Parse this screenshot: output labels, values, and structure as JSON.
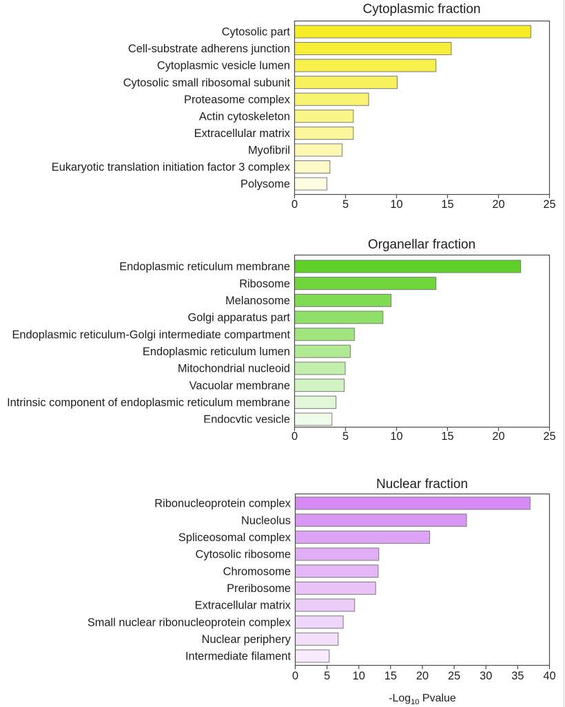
{
  "chart_data": [
    {
      "type": "bar",
      "orientation": "horizontal",
      "title": "Cytoplasmic fraction",
      "categories": [
        "Cytosolic part",
        "Cell-substrate adherens junction",
        "Cytoplasmic vesicle lumen",
        "Cytosolic small ribosomal subunit",
        "Proteasome complex",
        "Actin cytoskeleton",
        "Extracellular matrix",
        "Myofibril",
        "Eukaryotic translation initiation factor 3 complex",
        "Polysome"
      ],
      "values": [
        23.2,
        15.4,
        13.9,
        10.1,
        7.3,
        5.8,
        5.8,
        4.7,
        3.5,
        3.2
      ],
      "colors": [
        "#f6ed26",
        "#f7ee38",
        "#f8f04b",
        "#f8f15e",
        "#f9f372",
        "#faf587",
        "#fbf69b",
        "#fcf8b1",
        "#fdfac8",
        "#fefde2"
      ],
      "xlabel": "",
      "ylabel": "",
      "xlim": [
        0,
        25
      ],
      "xticks": [
        0,
        5,
        10,
        15,
        20,
        25
      ],
      "grid": false,
      "legend": "none"
    },
    {
      "type": "bar",
      "orientation": "horizontal",
      "title": "Organellar fraction",
      "categories": [
        "Endoplasmic reticulum membrane",
        "Ribosome",
        "Melanosome",
        "Golgi apparatus part",
        "Endoplasmic reticulum-Golgi intermediate compartment",
        "Endoplasmic reticulum lumen",
        "Mitochondrial nucleoid",
        "Vacuolar membrane",
        "Intrinsic component of endoplasmic reticulum membrane",
        "Endocytic vesicle"
      ],
      "values": [
        22.2,
        13.9,
        9.5,
        8.7,
        5.9,
        5.5,
        5.0,
        4.9,
        4.1,
        3.7
      ],
      "colors": [
        "#5fd126",
        "#6fd63c",
        "#7fdb52",
        "#8fe068",
        "#a0e57e",
        "#b1ea95",
        "#c2efac",
        "#d2f3c2",
        "#e1f7d7",
        "#eefbea"
      ],
      "xlabel": "",
      "ylabel": "",
      "xlim": [
        0,
        25
      ],
      "xticks": [
        0,
        5,
        10,
        15,
        20,
        25
      ],
      "grid": false,
      "legend": "none"
    },
    {
      "type": "bar",
      "orientation": "horizontal",
      "title": "Nuclear fraction",
      "categories": [
        "Ribonucleoprotein complex",
        "Nucleolus",
        "Spliceosomal complex",
        "Cytosolic ribosome",
        "Chromosome",
        "Preribosome",
        "Extracellular matrix",
        "Small nuclear ribonucleoprotein complex",
        "Nuclear periphery",
        "Intermediate filament"
      ],
      "values": [
        37.0,
        27.0,
        21.2,
        13.2,
        13.1,
        12.7,
        9.4,
        7.6,
        6.8,
        5.4
      ],
      "colors": [
        "#d58bf3",
        "#d997f4",
        "#dda3f5",
        "#e1aef6",
        "#e4b8f7",
        "#e8c2f8",
        "#ebccf8",
        "#efd6fa",
        "#f2e0fa",
        "#f6eafc"
      ],
      "xlabel": {
        "prefix": "-Log",
        "subscript": "10",
        "suffix": " Pvalue"
      },
      "ylabel": "",
      "xlim": [
        0,
        40
      ],
      "xticks": [
        0,
        5,
        10,
        15,
        20,
        25,
        30,
        35,
        40
      ],
      "grid": false,
      "legend": "none"
    }
  ],
  "style": {
    "bar_outline": "#7a7a7a",
    "axis_color": "#4a4a4a",
    "page_edge_color": "#d4d4d4"
  }
}
